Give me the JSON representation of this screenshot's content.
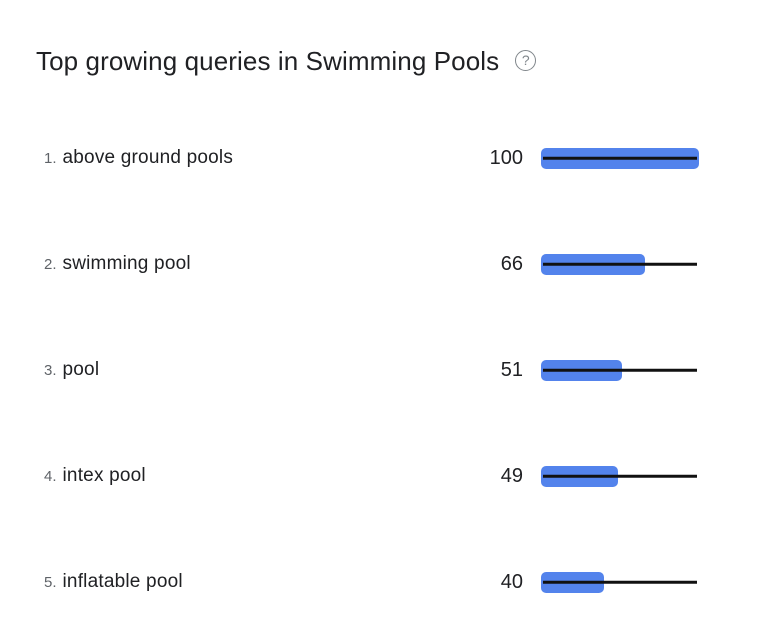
{
  "header": {
    "title": "Top growing queries in Swimming Pools",
    "help_icon": "?"
  },
  "colors": {
    "bar_fill": "#5383ec",
    "baseline": "#111111",
    "title_text": "#202124",
    "rank_text": "#5f6368",
    "query_text": "#202124",
    "help_icon": "#80868b"
  },
  "list": {
    "rows": [
      {
        "rank_label": "1.",
        "query": "above ground pools",
        "value": "100"
      },
      {
        "rank_label": "2.",
        "query": "swimming pool",
        "value": "66"
      },
      {
        "rank_label": "3.",
        "query": "pool",
        "value": "51"
      },
      {
        "rank_label": "4.",
        "query": "intex pool",
        "value": "49"
      },
      {
        "rank_label": "5.",
        "query": "inflatable pool",
        "value": "40"
      }
    ]
  },
  "chart_data": {
    "type": "bar",
    "orientation": "horizontal",
    "title": "Top growing queries in Swimming Pools",
    "categories": [
      "above ground pools",
      "swimming pool",
      "pool",
      "intex pool",
      "inflatable pool"
    ],
    "values": [
      100,
      66,
      51,
      49,
      40
    ],
    "xlim": [
      0,
      100
    ],
    "grid": false,
    "legend": false,
    "bar_color": "#5383ec",
    "baseline_color": "#111111",
    "value_labels_shown": true
  }
}
